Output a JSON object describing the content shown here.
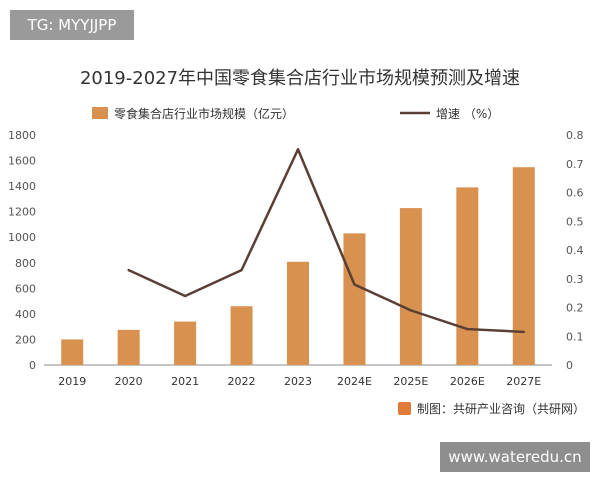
{
  "badges": {
    "top_left": "TG: MYYJJPP",
    "bottom_right": "www.wateredu.cn"
  },
  "source": {
    "icon": "source-logo-icon",
    "text": "制图：共研产业咨询（共研网）"
  },
  "colors": {
    "bar": "#d9914f",
    "line": "#5a3f35",
    "text": "#333333",
    "axis": "#555555",
    "logo": "#e07b39"
  },
  "chart_data": {
    "type": "bar",
    "title": "2019-2027年中国零食集合店行业市场规模预测及增速",
    "categories": [
      "2019",
      "2020",
      "2021",
      "2022",
      "2023",
      "2024E",
      "2025E",
      "2026E",
      "2027E"
    ],
    "series": [
      {
        "name": "零食集合店行业市场规模（亿元）",
        "type": "bar",
        "axis": "left",
        "values": [
          200,
          275,
          340,
          460,
          808,
          1030,
          1228,
          1390,
          1548
        ]
      },
      {
        "name": "增速 （%）",
        "type": "line",
        "axis": "right",
        "values": [
          null,
          0.33,
          0.24,
          0.33,
          0.75,
          0.28,
          0.19,
          0.125,
          0.115
        ]
      }
    ],
    "y_left": {
      "min": 0,
      "max": 1800,
      "ticks": [
        "0",
        "200",
        "400",
        "600",
        "800",
        "1000",
        "1200",
        "1400",
        "1600",
        "1800"
      ]
    },
    "y_right": {
      "min": 0,
      "max": 0.8,
      "ticks": [
        "0",
        "0.1",
        "0.2",
        "0.3",
        "0.4",
        "0.5",
        "0.6",
        "0.7",
        "0.8"
      ]
    },
    "grid": false,
    "legend_position": "top"
  }
}
